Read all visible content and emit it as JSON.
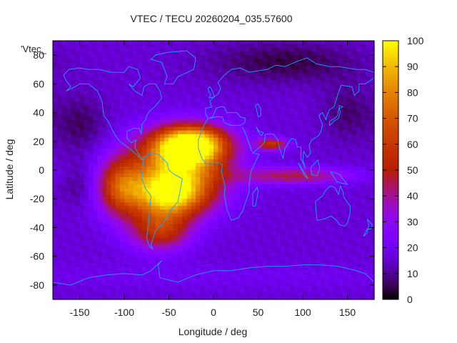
{
  "chart_data": {
    "type": "heatmap",
    "title": "VTEC / TECU 20260204_035.57600",
    "xlabel": "Longitude / deg",
    "ylabel": "Latitude / deg",
    "legend_label": "'Vtec_",
    "xlim": [
      -180,
      180
    ],
    "ylim": [
      -90,
      90
    ],
    "xticks": [
      -150,
      -100,
      -50,
      0,
      50,
      100,
      150
    ],
    "yticks": [
      -80,
      -60,
      -40,
      -20,
      0,
      20,
      40,
      60,
      80
    ],
    "colorbar": {
      "min": 0,
      "max": 100,
      "ticks": [
        0,
        10,
        20,
        30,
        40,
        50,
        60,
        70,
        80,
        90,
        100
      ]
    },
    "grid_resolution_deg": {
      "lon": 5,
      "lat": 2.5
    },
    "background_vtec": 16,
    "features": [
      {
        "name": "equatorial-anomaly-north",
        "lon": -25,
        "lat": 18,
        "peak": 80,
        "sigma_lon": 28,
        "sigma_lat": 9
      },
      {
        "name": "equatorial-anomaly-south",
        "lon": -50,
        "lat": -18,
        "peak": 66,
        "sigma_lon": 30,
        "sigma_lat": 11
      },
      {
        "name": "equatorial-core",
        "lon": -40,
        "lat": 2,
        "peak": 62,
        "sigma_lon": 38,
        "sigma_lat": 16
      },
      {
        "name": "american-sector-west",
        "lon": -105,
        "lat": -12,
        "peak": 42,
        "sigma_lon": 18,
        "sigma_lat": 14
      },
      {
        "name": "south-american-tail",
        "lon": -60,
        "lat": -42,
        "peak": 40,
        "sigma_lon": 24,
        "sigma_lat": 10
      },
      {
        "name": "africa-arabia-patch",
        "lon": 65,
        "lat": 18,
        "peak": 42,
        "sigma_lon": 12,
        "sigma_lat": 3
      },
      {
        "name": "indian-ocean-band",
        "lon": 90,
        "lat": -4,
        "peak": 30,
        "sigma_lon": 45,
        "sigma_lat": 4
      },
      {
        "name": "pacific-dark-north",
        "lon": -150,
        "lat": 32,
        "peak": -10,
        "sigma_lon": 20,
        "sigma_lat": 14
      },
      {
        "name": "pacific-dark-south",
        "lon": -150,
        "lat": -10,
        "peak": -7,
        "sigma_lon": 16,
        "sigma_lat": 10
      },
      {
        "name": "arctic-dark",
        "lon": 80,
        "lat": 75,
        "peak": -12,
        "sigma_lon": 60,
        "sigma_lat": 10
      },
      {
        "name": "east-asia-dark",
        "lon": 150,
        "lat": 40,
        "peak": -9,
        "sigma_lon": 20,
        "sigma_lat": 14
      },
      {
        "name": "antarctic-band",
        "lon": 0,
        "lat": -74,
        "peak": 4,
        "sigma_lon": 180,
        "sigma_lat": 6
      }
    ]
  },
  "coastlines": [
    {
      "name": "north-america",
      "points": [
        [
          -168,
          66
        ],
        [
          -162,
          70
        ],
        [
          -150,
          71
        ],
        [
          -140,
          70
        ],
        [
          -128,
          70
        ],
        [
          -115,
          68
        ],
        [
          -100,
          68
        ],
        [
          -95,
          72
        ],
        [
          -85,
          70
        ],
        [
          -82,
          64
        ],
        [
          -90,
          58
        ],
        [
          -95,
          60
        ],
        [
          -88,
          55
        ],
        [
          -80,
          52
        ],
        [
          -78,
          58
        ],
        [
          -72,
          60
        ],
        [
          -65,
          60
        ],
        [
          -60,
          55
        ],
        [
          -58,
          50
        ],
        [
          -66,
          44
        ],
        [
          -70,
          42
        ],
        [
          -75,
          38
        ],
        [
          -76,
          35
        ],
        [
          -80,
          32
        ],
        [
          -81,
          25
        ],
        [
          -83,
          29
        ],
        [
          -90,
          29
        ],
        [
          -97,
          27
        ],
        [
          -97,
          22
        ],
        [
          -92,
          19
        ],
        [
          -87,
          21
        ],
        [
          -88,
          16
        ],
        [
          -84,
          11
        ],
        [
          -80,
          8
        ],
        [
          -78,
          8
        ],
        [
          -80,
          7
        ],
        [
          -85,
          10
        ],
        [
          -92,
          14
        ],
        [
          -105,
          20
        ],
        [
          -110,
          24
        ],
        [
          -115,
          30
        ],
        [
          -118,
          34
        ],
        [
          -123,
          38
        ],
        [
          -124,
          43
        ],
        [
          -125,
          48
        ],
        [
          -130,
          55
        ],
        [
          -140,
          60
        ],
        [
          -150,
          60
        ],
        [
          -155,
          58
        ],
        [
          -165,
          55
        ],
        [
          -160,
          58
        ],
        [
          -165,
          62
        ],
        [
          -168,
          66
        ]
      ]
    },
    {
      "name": "greenland",
      "points": [
        [
          -55,
          60
        ],
        [
          -45,
          60
        ],
        [
          -40,
          65
        ],
        [
          -22,
          70
        ],
        [
          -20,
          78
        ],
        [
          -30,
          83
        ],
        [
          -50,
          82
        ],
        [
          -65,
          80
        ],
        [
          -70,
          77
        ],
        [
          -58,
          75
        ],
        [
          -55,
          70
        ],
        [
          -52,
          65
        ],
        [
          -55,
          60
        ]
      ]
    },
    {
      "name": "south-america",
      "points": [
        [
          -78,
          8
        ],
        [
          -72,
          12
        ],
        [
          -62,
          11
        ],
        [
          -52,
          5
        ],
        [
          -50,
          0
        ],
        [
          -44,
          -3
        ],
        [
          -35,
          -6
        ],
        [
          -37,
          -13
        ],
        [
          -40,
          -22
        ],
        [
          -48,
          -28
        ],
        [
          -53,
          -34
        ],
        [
          -58,
          -38
        ],
        [
          -65,
          -42
        ],
        [
          -67,
          -46
        ],
        [
          -70,
          -52
        ],
        [
          -68,
          -55
        ],
        [
          -72,
          -53
        ],
        [
          -75,
          -47
        ],
        [
          -73,
          -40
        ],
        [
          -72,
          -30
        ],
        [
          -70,
          -18
        ],
        [
          -76,
          -13
        ],
        [
          -81,
          -5
        ],
        [
          -80,
          -1
        ],
        [
          -78,
          8
        ]
      ]
    },
    {
      "name": "africa-eurasia",
      "points": [
        [
          -17,
          15
        ],
        [
          -17,
          21
        ],
        [
          -13,
          28
        ],
        [
          -9,
          33
        ],
        [
          -6,
          36
        ],
        [
          -9,
          39
        ],
        [
          -9,
          43
        ],
        [
          -2,
          44
        ],
        [
          -4,
          48
        ],
        [
          -1,
          50
        ],
        [
          5,
          53
        ],
        [
          8,
          57
        ],
        [
          5,
          61
        ],
        [
          12,
          66
        ],
        [
          20,
          70
        ],
        [
          30,
          71
        ],
        [
          40,
          68
        ],
        [
          50,
          69
        ],
        [
          60,
          70
        ],
        [
          70,
          73
        ],
        [
          80,
          72
        ],
        [
          95,
          76
        ],
        [
          105,
          78
        ],
        [
          115,
          74
        ],
        [
          130,
          72
        ],
        [
          140,
          72
        ],
        [
          160,
          70
        ],
        [
          170,
          70
        ],
        [
          180,
          68
        ],
        [
          180,
          64
        ],
        [
          170,
          60
        ],
        [
          163,
          60
        ],
        [
          163,
          55
        ],
        [
          158,
          52
        ],
        [
          155,
          58
        ],
        [
          143,
          59
        ],
        [
          140,
          54
        ],
        [
          135,
          44
        ],
        [
          130,
          42
        ],
        [
          127,
          38
        ],
        [
          126,
          35
        ],
        [
          122,
          40
        ],
        [
          118,
          38
        ],
        [
          122,
          32
        ],
        [
          121,
          28
        ],
        [
          118,
          24
        ],
        [
          110,
          21
        ],
        [
          107,
          17
        ],
        [
          109,
          12
        ],
        [
          105,
          9
        ],
        [
          101,
          13
        ],
        [
          100,
          7
        ],
        [
          103,
          1
        ],
        [
          98,
          8
        ],
        [
          98,
          16
        ],
        [
          94,
          16
        ],
        [
          92,
          21
        ],
        [
          88,
          22
        ],
        [
          85,
          20
        ],
        [
          80,
          15
        ],
        [
          78,
          8
        ],
        [
          73,
          17
        ],
        [
          72,
          21
        ],
        [
          67,
          25
        ],
        [
          58,
          25
        ],
        [
          57,
          19
        ],
        [
          52,
          16
        ],
        [
          44,
          12
        ],
        [
          51,
          11
        ],
        [
          42,
          -1
        ],
        [
          40,
          -10
        ],
        [
          40,
          -15
        ],
        [
          35,
          -24
        ],
        [
          33,
          -28
        ],
        [
          28,
          -33
        ],
        [
          20,
          -35
        ],
        [
          18,
          -32
        ],
        [
          15,
          -27
        ],
        [
          12,
          -17
        ],
        [
          13,
          -12
        ],
        [
          9,
          -1
        ],
        [
          10,
          4
        ],
        [
          5,
          5
        ],
        [
          -4,
          5
        ],
        [
          -8,
          4
        ],
        [
          -13,
          8
        ],
        [
          -17,
          15
        ]
      ]
    },
    {
      "name": "mediterranean",
      "points": [
        [
          -5,
          36
        ],
        [
          3,
          37
        ],
        [
          10,
          37
        ],
        [
          12,
          33
        ],
        [
          20,
          31
        ],
        [
          30,
          31
        ],
        [
          35,
          33
        ],
        [
          36,
          36
        ],
        [
          30,
          37
        ],
        [
          26,
          40
        ],
        [
          20,
          40
        ],
        [
          15,
          40
        ],
        [
          12,
          44
        ],
        [
          8,
          44
        ],
        [
          3,
          43
        ],
        [
          -1,
          37
        ],
        [
          -5,
          36
        ]
      ]
    },
    {
      "name": "red-sea",
      "points": [
        [
          32,
          30
        ],
        [
          35,
          27
        ],
        [
          39,
          20
        ],
        [
          43,
          13
        ],
        [
          41,
          16
        ],
        [
          38,
          22
        ],
        [
          34,
          28
        ],
        [
          32,
          30
        ]
      ]
    },
    {
      "name": "persian-gulf",
      "points": [
        [
          48,
          30
        ],
        [
          51,
          27
        ],
        [
          56,
          26
        ],
        [
          54,
          24
        ],
        [
          52,
          25
        ],
        [
          50,
          27
        ],
        [
          48,
          30
        ]
      ]
    },
    {
      "name": "caspian",
      "points": [
        [
          47,
          45
        ],
        [
          50,
          46
        ],
        [
          53,
          42
        ],
        [
          53,
          38
        ],
        [
          50,
          37
        ],
        [
          49,
          40
        ],
        [
          47,
          45
        ]
      ]
    },
    {
      "name": "great-britain",
      "points": [
        [
          -5,
          50
        ],
        [
          1,
          51
        ],
        [
          0,
          53
        ],
        [
          -2,
          56
        ],
        [
          -4,
          58
        ],
        [
          -6,
          57
        ],
        [
          -5,
          54
        ],
        [
          -3,
          53
        ],
        [
          -5,
          50
        ]
      ]
    },
    {
      "name": "madagascar",
      "points": [
        [
          44,
          -25
        ],
        [
          47,
          -25
        ],
        [
          50,
          -15
        ],
        [
          49,
          -12
        ],
        [
          44,
          -16
        ],
        [
          44,
          -25
        ]
      ]
    },
    {
      "name": "japan",
      "points": [
        [
          130,
          31
        ],
        [
          135,
          34
        ],
        [
          140,
          36
        ],
        [
          142,
          40
        ],
        [
          141,
          43
        ],
        [
          145,
          44
        ],
        [
          141,
          45
        ],
        [
          139,
          38
        ],
        [
          136,
          36
        ],
        [
          130,
          34
        ],
        [
          130,
          31
        ]
      ]
    },
    {
      "name": "australia",
      "points": [
        [
          114,
          -22
        ],
        [
          116,
          -35
        ],
        [
          124,
          -34
        ],
        [
          132,
          -32
        ],
        [
          138,
          -35
        ],
        [
          141,
          -38
        ],
        [
          147,
          -39
        ],
        [
          150,
          -37
        ],
        [
          153,
          -30
        ],
        [
          153,
          -25
        ],
        [
          146,
          -19
        ],
        [
          145,
          -15
        ],
        [
          142,
          -11
        ],
        [
          140,
          -17
        ],
        [
          136,
          -12
        ],
        [
          131,
          -11
        ],
        [
          126,
          -14
        ],
        [
          122,
          -18
        ],
        [
          114,
          -22
        ]
      ]
    },
    {
      "name": "new-zealand",
      "points": [
        [
          172,
          -34
        ],
        [
          178,
          -38
        ],
        [
          176,
          -41
        ],
        [
          172,
          -41
        ],
        [
          168,
          -46
        ],
        [
          172,
          -44
        ],
        [
          174,
          -38
        ],
        [
          172,
          -34
        ]
      ]
    },
    {
      "name": "sumatra-borneo",
      "points": [
        [
          95,
          5
        ],
        [
          106,
          -6
        ],
        [
          102,
          -4
        ],
        [
          95,
          5
        ]
      ]
    },
    {
      "name": "borneo",
      "points": [
        [
          109,
          2
        ],
        [
          117,
          7
        ],
        [
          119,
          1
        ],
        [
          116,
          -4
        ],
        [
          110,
          -3
        ],
        [
          109,
          2
        ]
      ]
    },
    {
      "name": "new-guinea",
      "points": [
        [
          131,
          -1
        ],
        [
          141,
          -3
        ],
        [
          150,
          -10
        ],
        [
          143,
          -9
        ],
        [
          138,
          -8
        ],
        [
          131,
          -1
        ]
      ]
    },
    {
      "name": "antarctica",
      "points": [
        [
          -180,
          -78
        ],
        [
          -160,
          -80
        ],
        [
          -140,
          -75
        ],
        [
          -120,
          -73
        ],
        [
          -100,
          -72
        ],
        [
          -80,
          -73
        ],
        [
          -70,
          -70
        ],
        [
          -58,
          -63
        ],
        [
          -62,
          -66
        ],
        [
          -60,
          -75
        ],
        [
          -40,
          -78
        ],
        [
          -20,
          -73
        ],
        [
          0,
          -70
        ],
        [
          20,
          -70
        ],
        [
          40,
          -68
        ],
        [
          60,
          -67
        ],
        [
          80,
          -67
        ],
        [
          100,
          -66
        ],
        [
          120,
          -66
        ],
        [
          140,
          -67
        ],
        [
          160,
          -70
        ],
        [
          170,
          -72
        ],
        [
          180,
          -78
        ]
      ]
    }
  ]
}
